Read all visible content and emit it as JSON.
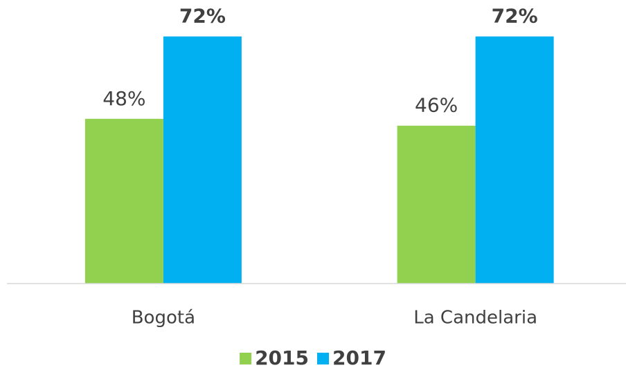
{
  "chart_data": {
    "type": "bar",
    "categories": [
      "Bogotá",
      "La Candelaria"
    ],
    "series": [
      {
        "name": "2015",
        "color": "#92d050",
        "values": [
          48,
          46
        ],
        "value_labels": [
          "48%",
          "46%"
        ]
      },
      {
        "name": "2017",
        "color": "#00b0f0",
        "values": [
          72,
          72
        ],
        "value_labels": [
          "72%",
          "72%"
        ]
      }
    ],
    "ylim": [
      0,
      80
    ],
    "legend": "bottom"
  }
}
